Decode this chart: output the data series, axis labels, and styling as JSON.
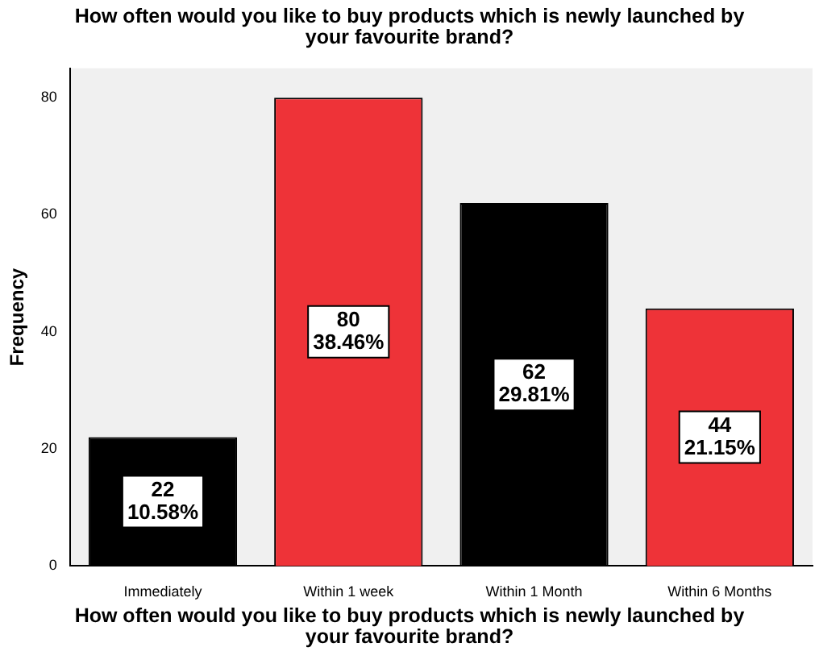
{
  "chart_data": {
    "type": "bar",
    "title": "How often would you like to buy products which is newly launched by your favourite brand?",
    "xlabel": "How often would you like to buy products which is newly launched by your favourite brand?",
    "ylabel": "Frequency",
    "categories": [
      "Immediately",
      "Within 1 week",
      "Within 1 Month",
      "Within 6 Months"
    ],
    "values": [
      22,
      80,
      62,
      44
    ],
    "colors": [
      "#000000",
      "#ee3338",
      "#000000",
      "#ee3338"
    ],
    "value_labels": [
      "22\n10.58%",
      "80\n38.46%",
      "62\n29.81%",
      "44\n21.15%"
    ],
    "ylim": [
      0,
      85
    ],
    "yticks": [
      0,
      20,
      40,
      60,
      80
    ],
    "grid": false,
    "legend": false
  }
}
